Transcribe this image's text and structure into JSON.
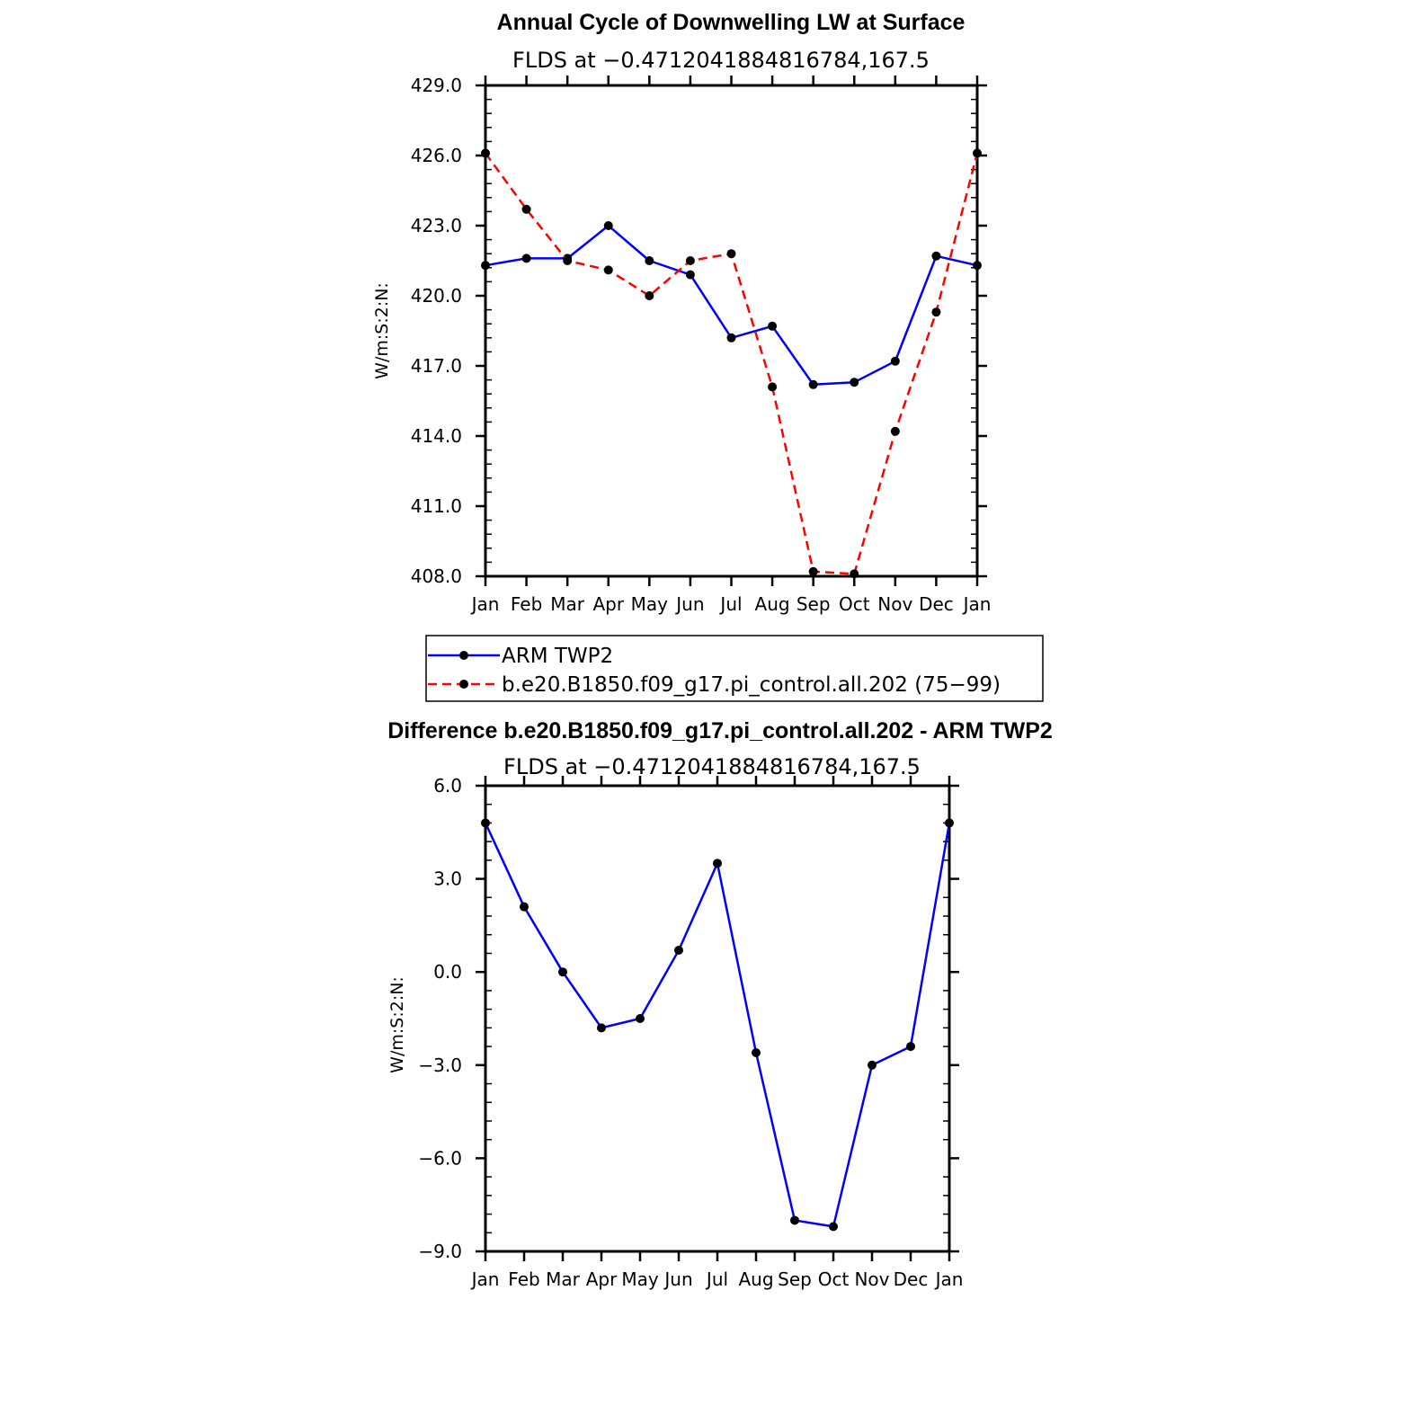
{
  "chart_data": [
    {
      "type": "line",
      "title": "Annual Cycle of Downwelling LW at Surface",
      "subtitle": "FLDS at −0.4712041884816784,167.5",
      "ylabel": "W/m:S:2:N:",
      "xlabel": "",
      "categories": [
        "Jan",
        "Feb",
        "Mar",
        "Apr",
        "May",
        "Jun",
        "Jul",
        "Aug",
        "Sep",
        "Oct",
        "Nov",
        "Dec",
        "Jan"
      ],
      "ylim": [
        408.0,
        429.0
      ],
      "yticks": [
        "408.0",
        "411.0",
        "414.0",
        "417.0",
        "420.0",
        "423.0",
        "426.0",
        "429.0"
      ],
      "grid": false,
      "legend_position": "bottom",
      "series": [
        {
          "name": "ARM TWP2",
          "color": "#0000ff",
          "dash": false,
          "values": [
            421.3,
            421.6,
            421.6,
            423.0,
            421.5,
            420.9,
            418.2,
            418.7,
            416.2,
            416.3,
            417.2,
            421.7,
            421.3
          ]
        },
        {
          "name": "b.e20.B1850.f09_g17.pi_control.all.202 (75−99)",
          "color": "#ff0000",
          "dash": true,
          "values": [
            426.1,
            423.7,
            421.5,
            421.1,
            420.0,
            421.5,
            421.8,
            416.1,
            408.2,
            408.1,
            414.2,
            419.3,
            426.1
          ]
        }
      ]
    },
    {
      "type": "line",
      "title": "Difference b.e20.B1850.f09_g17.pi_control.all.202 - ARM TWP2",
      "subtitle": "FLDS at −0.4712041884816784,167.5",
      "ylabel": "W/m:S:2:N:",
      "xlabel": "",
      "categories": [
        "Jan",
        "Feb",
        "Mar",
        "Apr",
        "May",
        "Jun",
        "Jul",
        "Aug",
        "Sep",
        "Oct",
        "Nov",
        "Dec",
        "Jan"
      ],
      "ylim": [
        -9.0,
        6.0
      ],
      "yticks": [
        "−9.0",
        "−6.0",
        "−3.0",
        "0.0",
        "3.0",
        "6.0"
      ],
      "grid": false,
      "series": [
        {
          "color": "#0000ff",
          "dash": false,
          "values": [
            4.8,
            2.1,
            0.0,
            -1.8,
            -1.5,
            0.7,
            3.5,
            -2.6,
            -8.0,
            -8.2,
            -3.0,
            -2.4,
            4.8
          ]
        }
      ]
    }
  ]
}
